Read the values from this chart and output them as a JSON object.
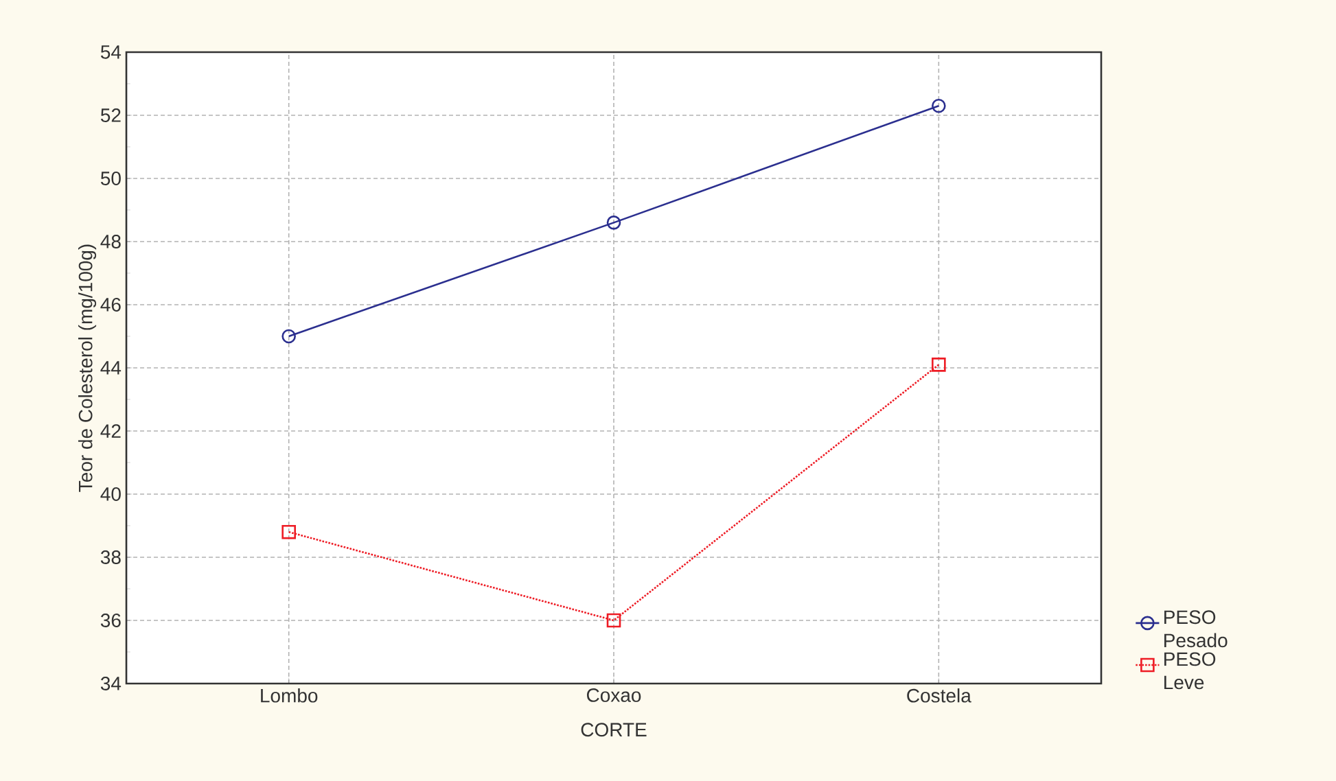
{
  "chart_data": {
    "type": "line",
    "xlabel": "CORTE",
    "ylabel": "Teor de Colesterol (mg/100g)",
    "categories": [
      "Lombo",
      "Coxao",
      "Costela"
    ],
    "series": [
      {
        "name": "PESO Pesado",
        "color": "#2b2f8f",
        "marker": "circle",
        "line_style": "solid",
        "values": [
          45.0,
          48.6,
          52.3
        ]
      },
      {
        "name": "PESO Leve",
        "color": "#ee1c25",
        "marker": "square",
        "line_style": "dotted",
        "values": [
          38.8,
          36.0,
          44.1
        ]
      }
    ],
    "ylim": [
      34,
      54
    ],
    "yticks": [
      34,
      36,
      38,
      40,
      42,
      44,
      46,
      48,
      50,
      52,
      54
    ],
    "grid": true,
    "legend": "bottom right"
  }
}
